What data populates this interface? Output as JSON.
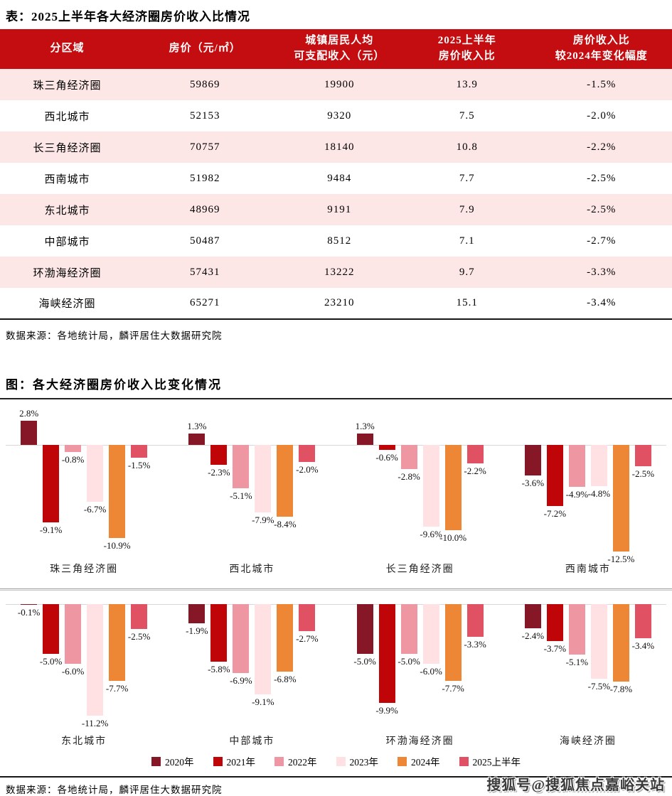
{
  "table": {
    "title": "表：2025上半年各大经济圈房价收入比情况",
    "headers": [
      "分区域",
      "房价（元/㎡）",
      "城镇居民人均\n可支配收入（元）",
      "2025上半年\n房价收入比",
      "房价收入比\n较2024年变化幅度"
    ],
    "rows": [
      [
        "珠三角经济圈",
        "59869",
        "19900",
        "13.9",
        "-1.5%"
      ],
      [
        "西北城市",
        "52153",
        "9320",
        "7.5",
        "-2.0%"
      ],
      [
        "长三角经济圈",
        "70757",
        "18140",
        "10.8",
        "-2.2%"
      ],
      [
        "西南城市",
        "51982",
        "9484",
        "7.7",
        "-2.5%"
      ],
      [
        "东北城市",
        "48969",
        "9191",
        "7.9",
        "-2.5%"
      ],
      [
        "中部城市",
        "50487",
        "8512",
        "7.1",
        "-2.7%"
      ],
      [
        "环渤海经济圈",
        "57431",
        "13222",
        "9.7",
        "-3.3%"
      ],
      [
        "海峡经济圈",
        "65271",
        "23210",
        "15.1",
        "-3.4%"
      ]
    ],
    "source": "数据来源：各地统计局，麟评居住大数据研究院",
    "header_bg": "#C40D10",
    "row_stripe": "#FCE6E6"
  },
  "chart": {
    "title": "图：各大经济圈房价收入比变化情况",
    "source": "数据来源：各地统计局，麟评居住大数据研究院"
  },
  "chart_data": {
    "type": "bar",
    "title": "图：各大经济圈房价收入比变化情况",
    "value_unit": "%",
    "legend_position": "bottom",
    "series": [
      "2020年",
      "2021年",
      "2022年",
      "2023年",
      "2024年",
      "2025上半年"
    ],
    "colors": [
      "#851726",
      "#C00508",
      "#EE96A2",
      "#FFE1E4",
      "#EE8735",
      "#E05263"
    ],
    "rows": [
      {
        "groups": [
          {
            "name": "珠三角经济圈",
            "values": [
              2.8,
              -9.1,
              -0.8,
              -6.7,
              -10.9,
              -1.5
            ],
            "labels": [
              "2.8%",
              "-9.1%",
              "-0.8%",
              "-6.7%",
              "-10.9%",
              "-1.5%"
            ]
          },
          {
            "name": "西北城市",
            "values": [
              1.3,
              -2.3,
              -5.1,
              -7.9,
              -8.4,
              -2.0
            ],
            "labels": [
              "1.3%",
              "-2.3%",
              "-5.1%",
              "-7.9%",
              "-8.4%",
              "-2.0%"
            ]
          },
          {
            "name": "长三角经济圈",
            "values": [
              1.3,
              -0.6,
              -2.8,
              -9.6,
              -10.0,
              -2.2
            ],
            "labels": [
              "1.3%",
              "-0.6%",
              "-2.8%",
              "-9.6%",
              "-10.0%",
              "-2.2%"
            ]
          },
          {
            "name": "西南城市",
            "values": [
              -3.6,
              -7.2,
              -4.9,
              -4.8,
              -12.5,
              -2.5
            ],
            "labels": [
              "-3.6%",
              "-7.2%",
              "-4.9%",
              "-4.8%",
              "-12.5%",
              "-2.5%"
            ]
          }
        ]
      },
      {
        "groups": [
          {
            "name": "东北城市",
            "values": [
              -0.1,
              -5.0,
              -6.0,
              -11.2,
              -7.7,
              -2.5
            ],
            "labels": [
              "-0.1%",
              "-5.0%",
              "-6.0%",
              "-11.2%",
              "-7.7%",
              "-2.5%"
            ]
          },
          {
            "name": "中部城市",
            "values": [
              -1.9,
              -5.8,
              -6.9,
              -9.1,
              -6.8,
              -2.7
            ],
            "labels": [
              "-1.9%",
              "-5.8%",
              "-6.9%",
              "-9.1%",
              "-6.8%",
              "-2.7%"
            ]
          },
          {
            "name": "环渤海经济圈",
            "values": [
              -5.0,
              -9.9,
              -5.0,
              -6.0,
              -7.7,
              -3.3
            ],
            "labels": [
              "-5.0%",
              "-9.9%",
              "-5.0%",
              "-6.0%",
              "-7.7%",
              "-3.3%"
            ]
          },
          {
            "name": "海峡经济圈",
            "values": [
              -2.4,
              -3.7,
              -5.1,
              -7.5,
              -7.8,
              -3.4
            ],
            "labels": [
              "-2.4%",
              "-3.7%",
              "-5.1%",
              "-7.5%",
              "-7.8%",
              "-3.4%"
            ]
          }
        ]
      }
    ]
  },
  "watermark": "搜狐号@搜狐焦点嘉峪关站"
}
